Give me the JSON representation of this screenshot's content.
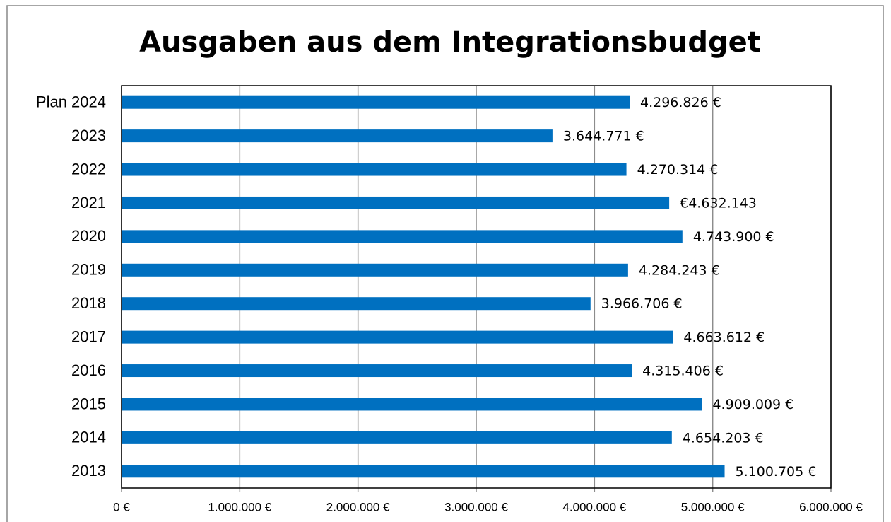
{
  "chart_data": {
    "type": "hbar",
    "title": "Ausgaben aus dem Integrationsbudget",
    "categories": [
      "Plan 2024",
      "2023",
      "2022",
      "2021",
      "2020",
      "2019",
      "2018",
      "2017",
      "2016",
      "2015",
      "2014",
      "2013"
    ],
    "values": [
      4296826,
      3644771,
      4270314,
      4632143,
      4743900,
      4284243,
      3966706,
      4663612,
      4315406,
      4909009,
      4654203,
      5100705
    ],
    "value_labels": [
      "4.296.826 €",
      "3.644.771 €",
      "4.270.314 €",
      "€4.632.143",
      "4.743.900 €",
      "4.284.243 €",
      "3.966.706 €",
      "4.663.612 €",
      "4.315.406 €",
      "4.909.009 €",
      "4.654.203 €",
      "5.100.705 €"
    ],
    "color": "#0070c0",
    "xlim": [
      0,
      6000000
    ],
    "xticks": [
      {
        "value": 0,
        "label": "0 €"
      },
      {
        "value": 1000000,
        "label": "1.000.000 €"
      },
      {
        "value": 2000000,
        "label": "2.000.000 €"
      },
      {
        "value": 3000000,
        "label": "3.000.000 €"
      },
      {
        "value": 4000000,
        "label": "4.000.000 €"
      },
      {
        "value": 5000000,
        "label": "5.000.000 €"
      },
      {
        "value": 6000000,
        "label": "6.000.000 €"
      }
    ],
    "grid": true
  }
}
